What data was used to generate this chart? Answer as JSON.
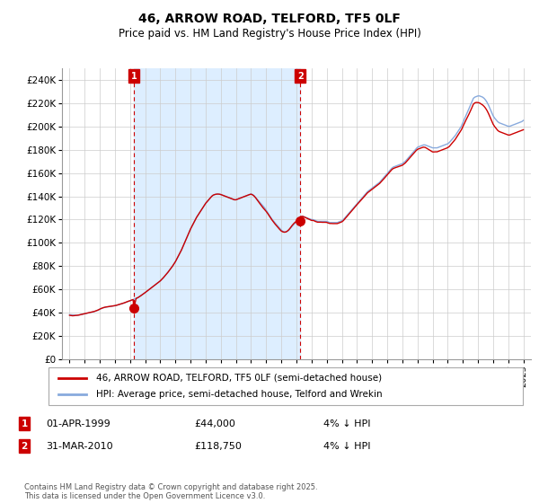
{
  "title": "46, ARROW ROAD, TELFORD, TF5 0LF",
  "subtitle": "Price paid vs. HM Land Registry's House Price Index (HPI)",
  "ytick_values": [
    0,
    20000,
    40000,
    60000,
    80000,
    100000,
    120000,
    140000,
    160000,
    180000,
    200000,
    220000,
    240000
  ],
  "ylim": [
    0,
    250000
  ],
  "xlim_start": 1994.5,
  "xlim_end": 2025.5,
  "xtick_years": [
    1995,
    1996,
    1997,
    1998,
    1999,
    2000,
    2001,
    2002,
    2003,
    2004,
    2005,
    2006,
    2007,
    2008,
    2009,
    2010,
    2011,
    2012,
    2013,
    2014,
    2015,
    2016,
    2017,
    2018,
    2019,
    2020,
    2021,
    2022,
    2023,
    2024,
    2025
  ],
  "line1_color": "#cc0000",
  "line2_color": "#88aadd",
  "vline_color": "#cc0000",
  "shade_color": "#ddeeff",
  "annotation_box_color": "#cc0000",
  "legend_line1": "46, ARROW ROAD, TELFORD, TF5 0LF (semi-detached house)",
  "legend_line2": "HPI: Average price, semi-detached house, Telford and Wrekin",
  "note1_label": "1",
  "note1_date": "01-APR-1999",
  "note1_price": "£44,000",
  "note1_text": "4% ↓ HPI",
  "note2_label": "2",
  "note2_date": "31-MAR-2010",
  "note2_price": "£118,750",
  "note2_text": "4% ↓ HPI",
  "footer": "Contains HM Land Registry data © Crown copyright and database right 2025.\nThis data is licensed under the Open Government Licence v3.0.",
  "purchase1_year": 1999.25,
  "purchase1_price": 44000,
  "purchase2_year": 2010.25,
  "purchase2_price": 118750,
  "hpi_data_x": [
    1995.0,
    1995.1,
    1995.2,
    1995.3,
    1995.4,
    1995.5,
    1995.6,
    1995.7,
    1995.8,
    1995.9,
    1996.0,
    1996.1,
    1996.2,
    1996.3,
    1996.4,
    1996.5,
    1996.6,
    1996.7,
    1996.8,
    1996.9,
    1997.0,
    1997.1,
    1997.2,
    1997.3,
    1997.4,
    1997.5,
    1997.6,
    1997.7,
    1997.8,
    1997.9,
    1998.0,
    1998.1,
    1998.2,
    1998.3,
    1998.4,
    1998.5,
    1998.6,
    1998.7,
    1998.8,
    1998.9,
    1999.0,
    1999.1,
    1999.2,
    1999.3,
    1999.4,
    1999.5,
    1999.6,
    1999.7,
    1999.8,
    1999.9,
    2000.0,
    2000.1,
    2000.2,
    2000.3,
    2000.4,
    2000.5,
    2000.6,
    2000.7,
    2000.8,
    2000.9,
    2001.0,
    2001.1,
    2001.2,
    2001.3,
    2001.4,
    2001.5,
    2001.6,
    2001.7,
    2001.8,
    2001.9,
    2002.0,
    2002.1,
    2002.2,
    2002.3,
    2002.4,
    2002.5,
    2002.6,
    2002.7,
    2002.8,
    2002.9,
    2003.0,
    2003.1,
    2003.2,
    2003.3,
    2003.4,
    2003.5,
    2003.6,
    2003.7,
    2003.8,
    2003.9,
    2004.0,
    2004.1,
    2004.2,
    2004.3,
    2004.4,
    2004.5,
    2004.6,
    2004.7,
    2004.8,
    2004.9,
    2005.0,
    2005.1,
    2005.2,
    2005.3,
    2005.4,
    2005.5,
    2005.6,
    2005.7,
    2005.8,
    2005.9,
    2006.0,
    2006.1,
    2006.2,
    2006.3,
    2006.4,
    2006.5,
    2006.6,
    2006.7,
    2006.8,
    2006.9,
    2007.0,
    2007.1,
    2007.2,
    2007.3,
    2007.4,
    2007.5,
    2007.6,
    2007.7,
    2007.8,
    2007.9,
    2008.0,
    2008.1,
    2008.2,
    2008.3,
    2008.4,
    2008.5,
    2008.6,
    2008.7,
    2008.8,
    2008.9,
    2009.0,
    2009.1,
    2009.2,
    2009.3,
    2009.4,
    2009.5,
    2009.6,
    2009.7,
    2009.8,
    2009.9,
    2010.0,
    2010.1,
    2010.2,
    2010.3,
    2010.4,
    2010.5,
    2010.6,
    2010.7,
    2010.8,
    2010.9,
    2011.0,
    2011.1,
    2011.2,
    2011.3,
    2011.4,
    2011.5,
    2011.6,
    2011.7,
    2011.8,
    2011.9,
    2012.0,
    2012.1,
    2012.2,
    2012.3,
    2012.4,
    2012.5,
    2012.6,
    2012.7,
    2012.8,
    2012.9,
    2013.0,
    2013.1,
    2013.2,
    2013.3,
    2013.4,
    2013.5,
    2013.6,
    2013.7,
    2013.8,
    2013.9,
    2014.0,
    2014.1,
    2014.2,
    2014.3,
    2014.4,
    2014.5,
    2014.6,
    2014.7,
    2014.8,
    2014.9,
    2015.0,
    2015.1,
    2015.2,
    2015.3,
    2015.4,
    2015.5,
    2015.6,
    2015.7,
    2015.8,
    2015.9,
    2016.0,
    2016.1,
    2016.2,
    2016.3,
    2016.4,
    2016.5,
    2016.6,
    2016.7,
    2016.8,
    2016.9,
    2017.0,
    2017.1,
    2017.2,
    2017.3,
    2017.4,
    2017.5,
    2017.6,
    2017.7,
    2017.8,
    2017.9,
    2018.0,
    2018.1,
    2018.2,
    2018.3,
    2018.4,
    2018.5,
    2018.6,
    2018.7,
    2018.8,
    2018.9,
    2019.0,
    2019.1,
    2019.2,
    2019.3,
    2019.4,
    2019.5,
    2019.6,
    2019.7,
    2019.8,
    2019.9,
    2020.0,
    2020.1,
    2020.2,
    2020.3,
    2020.4,
    2020.5,
    2020.6,
    2020.7,
    2020.8,
    2020.9,
    2021.0,
    2021.1,
    2021.2,
    2021.3,
    2021.4,
    2021.5,
    2021.6,
    2021.7,
    2021.8,
    2021.9,
    2022.0,
    2022.1,
    2022.2,
    2022.3,
    2022.4,
    2022.5,
    2022.6,
    2022.7,
    2022.8,
    2022.9,
    2023.0,
    2023.1,
    2023.2,
    2023.3,
    2023.4,
    2023.5,
    2023.6,
    2023.7,
    2023.8,
    2023.9,
    2024.0,
    2024.1,
    2024.2,
    2024.3,
    2024.4,
    2024.5,
    2024.6,
    2024.7,
    2024.8,
    2024.9,
    2025.0
  ],
  "hpi_data_y": [
    38500,
    38400,
    38300,
    38200,
    38100,
    38000,
    38200,
    38400,
    38700,
    39000,
    39300,
    39600,
    39900,
    40200,
    40500,
    40800,
    41100,
    41500,
    42000,
    42500,
    43200,
    43800,
    44300,
    44700,
    45000,
    45200,
    45400,
    45600,
    45800,
    46000,
    46200,
    46500,
    46900,
    47300,
    47700,
    48100,
    48500,
    49000,
    49500,
    50000,
    50500,
    51000,
    51500,
    52000,
    52500,
    53000,
    53800,
    54700,
    55600,
    56500,
    57500,
    58500,
    59500,
    60500,
    61500,
    62500,
    63500,
    64500,
    65500,
    66500,
    67500,
    68800,
    70200,
    71700,
    73200,
    74800,
    76500,
    78200,
    80000,
    82000,
    84000,
    86500,
    89000,
    91500,
    94000,
    97000,
    100000,
    103000,
    106000,
    109000,
    112000,
    114500,
    117000,
    119500,
    122000,
    124000,
    126000,
    128000,
    130000,
    132000,
    134000,
    135500,
    137000,
    138500,
    140000,
    141000,
    141500,
    141800,
    141900,
    141800,
    141500,
    141000,
    140500,
    140000,
    139500,
    139000,
    138500,
    138000,
    137500,
    137000,
    137000,
    137500,
    138000,
    138500,
    139000,
    139500,
    140000,
    140500,
    141000,
    141500,
    142000,
    141500,
    140500,
    139000,
    137500,
    136000,
    134500,
    133000,
    131500,
    130000,
    128000,
    126000,
    124000,
    122000,
    120000,
    118500,
    117000,
    115500,
    114000,
    112500,
    111000,
    110000,
    109500,
    109500,
    110000,
    111000,
    112500,
    114000,
    115500,
    117000,
    118500,
    120000,
    121500,
    122500,
    123000,
    122500,
    122000,
    121500,
    121000,
    120500,
    120000,
    120000,
    119500,
    119000,
    118500,
    118500,
    118500,
    118500,
    118500,
    118500,
    118500,
    118000,
    117500,
    117500,
    117500,
    117500,
    117500,
    117500,
    118000,
    118500,
    119000,
    120000,
    121500,
    123000,
    124500,
    126000,
    127500,
    129000,
    130500,
    132000,
    133500,
    135000,
    136500,
    138000,
    139500,
    141000,
    142500,
    144000,
    145000,
    146000,
    147000,
    148000,
    149000,
    150000,
    151000,
    152000,
    153500,
    155000,
    156500,
    158000,
    159500,
    161000,
    162500,
    164000,
    165000,
    165500,
    166000,
    166500,
    167000,
    167500,
    168000,
    169000,
    170000,
    171500,
    173000,
    174500,
    176000,
    177500,
    179000,
    180500,
    182000,
    182500,
    183000,
    183500,
    184000,
    184000,
    183500,
    183000,
    182500,
    182000,
    181500,
    181500,
    181500,
    181500,
    182000,
    182500,
    183000,
    183500,
    184000,
    184500,
    185000,
    186000,
    187500,
    189000,
    190500,
    192000,
    194000,
    196000,
    198000,
    200000,
    203000,
    206000,
    209000,
    212000,
    215000,
    218000,
    221000,
    224000,
    225000,
    225500,
    226000,
    226000,
    225500,
    225000,
    224000,
    222500,
    220500,
    218000,
    215000,
    212000,
    209000,
    207000,
    205500,
    204000,
    203000,
    202500,
    202000,
    201500,
    201000,
    200500,
    200000,
    200000,
    200500,
    201000,
    201500,
    202000,
    202500,
    203000,
    203500,
    204000,
    205000
  ],
  "price_data_x": [
    1995.0,
    1995.1,
    1995.2,
    1995.3,
    1995.4,
    1995.5,
    1995.6,
    1995.7,
    1995.8,
    1995.9,
    1996.0,
    1996.1,
    1996.2,
    1996.3,
    1996.4,
    1996.5,
    1996.6,
    1996.7,
    1996.8,
    1996.9,
    1997.0,
    1997.1,
    1997.2,
    1997.3,
    1997.4,
    1997.5,
    1997.6,
    1997.7,
    1997.8,
    1997.9,
    1998.0,
    1998.1,
    1998.2,
    1998.3,
    1998.4,
    1998.5,
    1998.6,
    1998.7,
    1998.8,
    1998.9,
    1999.0,
    1999.1,
    1999.2,
    1999.25,
    1999.4,
    1999.5,
    1999.6,
    1999.7,
    1999.8,
    1999.9,
    2000.0,
    2000.1,
    2000.2,
    2000.3,
    2000.4,
    2000.5,
    2000.6,
    2000.7,
    2000.8,
    2000.9,
    2001.0,
    2001.1,
    2001.2,
    2001.3,
    2001.4,
    2001.5,
    2001.6,
    2001.7,
    2001.8,
    2001.9,
    2002.0,
    2002.1,
    2002.2,
    2002.3,
    2002.4,
    2002.5,
    2002.6,
    2002.7,
    2002.8,
    2002.9,
    2003.0,
    2003.1,
    2003.2,
    2003.3,
    2003.4,
    2003.5,
    2003.6,
    2003.7,
    2003.8,
    2003.9,
    2004.0,
    2004.1,
    2004.2,
    2004.3,
    2004.4,
    2004.5,
    2004.6,
    2004.7,
    2004.8,
    2004.9,
    2005.0,
    2005.1,
    2005.2,
    2005.3,
    2005.4,
    2005.5,
    2005.6,
    2005.7,
    2005.8,
    2005.9,
    2006.0,
    2006.1,
    2006.2,
    2006.3,
    2006.4,
    2006.5,
    2006.6,
    2006.7,
    2006.8,
    2006.9,
    2007.0,
    2007.1,
    2007.2,
    2007.3,
    2007.4,
    2007.5,
    2007.6,
    2007.7,
    2007.8,
    2007.9,
    2008.0,
    2008.1,
    2008.2,
    2008.3,
    2008.4,
    2008.5,
    2008.6,
    2008.7,
    2008.8,
    2008.9,
    2009.0,
    2009.1,
    2009.2,
    2009.3,
    2009.4,
    2009.5,
    2009.6,
    2009.7,
    2009.8,
    2009.9,
    2010.0,
    2010.1,
    2010.2,
    2010.25,
    2010.4,
    2010.5,
    2010.6,
    2010.7,
    2010.8,
    2010.9,
    2011.0,
    2011.1,
    2011.2,
    2011.3,
    2011.4,
    2011.5,
    2011.6,
    2011.7,
    2011.8,
    2011.9,
    2012.0,
    2012.1,
    2012.2,
    2012.3,
    2012.4,
    2012.5,
    2012.6,
    2012.7,
    2012.8,
    2012.9,
    2013.0,
    2013.1,
    2013.2,
    2013.3,
    2013.4,
    2013.5,
    2013.6,
    2013.7,
    2013.8,
    2013.9,
    2014.0,
    2014.1,
    2014.2,
    2014.3,
    2014.4,
    2014.5,
    2014.6,
    2014.7,
    2014.8,
    2014.9,
    2015.0,
    2015.1,
    2015.2,
    2015.3,
    2015.4,
    2015.5,
    2015.6,
    2015.7,
    2015.8,
    2015.9,
    2016.0,
    2016.1,
    2016.2,
    2016.3,
    2016.4,
    2016.5,
    2016.6,
    2016.7,
    2016.8,
    2016.9,
    2017.0,
    2017.1,
    2017.2,
    2017.3,
    2017.4,
    2017.5,
    2017.6,
    2017.7,
    2017.8,
    2017.9,
    2018.0,
    2018.1,
    2018.2,
    2018.3,
    2018.4,
    2018.5,
    2018.6,
    2018.7,
    2018.8,
    2018.9,
    2019.0,
    2019.1,
    2019.2,
    2019.3,
    2019.4,
    2019.5,
    2019.6,
    2019.7,
    2019.8,
    2019.9,
    2020.0,
    2020.1,
    2020.2,
    2020.3,
    2020.4,
    2020.5,
    2020.6,
    2020.7,
    2020.8,
    2020.9,
    2021.0,
    2021.1,
    2021.2,
    2021.3,
    2021.4,
    2021.5,
    2021.6,
    2021.7,
    2021.8,
    2021.9,
    2022.0,
    2022.1,
    2022.2,
    2022.3,
    2022.4,
    2022.5,
    2022.6,
    2022.7,
    2022.8,
    2022.9,
    2023.0,
    2023.1,
    2023.2,
    2023.3,
    2023.4,
    2023.5,
    2023.6,
    2023.7,
    2023.8,
    2023.9,
    2024.0,
    2024.1,
    2024.2,
    2024.3,
    2024.4,
    2024.5,
    2024.6,
    2024.7,
    2024.8,
    2024.9,
    2025.0
  ],
  "price_data_y": [
    38000,
    37800,
    37600,
    37700,
    37900,
    38000,
    38200,
    38500,
    38800,
    39100,
    39400,
    39700,
    40000,
    40300,
    40600,
    40900,
    41200,
    41600,
    42100,
    42600,
    43300,
    43900,
    44400,
    44800,
    45100,
    45300,
    45500,
    45700,
    45900,
    46100,
    46300,
    46600,
    47000,
    47400,
    47800,
    48200,
    48600,
    49100,
    49600,
    50100,
    50500,
    51000,
    51500,
    44000,
    52500,
    53000,
    53800,
    54700,
    55600,
    56500,
    57500,
    58500,
    59500,
    60500,
    61500,
    62500,
    63500,
    64500,
    65500,
    66500,
    67500,
    68800,
    70200,
    71700,
    73200,
    74800,
    76500,
    78200,
    80000,
    82000,
    84000,
    86500,
    89000,
    91500,
    94000,
    97000,
    100000,
    103000,
    106000,
    109000,
    112000,
    114500,
    117000,
    119500,
    122000,
    124000,
    126000,
    128000,
    130000,
    132000,
    134000,
    135500,
    137000,
    138500,
    140000,
    141000,
    141500,
    141800,
    141900,
    141800,
    141500,
    141000,
    140500,
    140000,
    139500,
    139000,
    138500,
    138000,
    137500,
    137000,
    137000,
    137500,
    138000,
    138500,
    139000,
    139500,
    140000,
    140500,
    141000,
    141500,
    141800,
    141200,
    140200,
    138700,
    136900,
    135200,
    133400,
    131700,
    130000,
    128500,
    127000,
    125200,
    123200,
    121300,
    119400,
    117700,
    116000,
    114500,
    113000,
    111500,
    110200,
    109500,
    109200,
    109400,
    110200,
    111400,
    113000,
    114800,
    116300,
    117600,
    118700,
    118750,
    121500,
    122500,
    122800,
    122300,
    121700,
    121100,
    120500,
    119900,
    119300,
    119300,
    118800,
    118200,
    117800,
    117800,
    117800,
    117700,
    117700,
    117700,
    117600,
    117100,
    116700,
    116700,
    116600,
    116600,
    116600,
    116600,
    117100,
    117600,
    118100,
    119100,
    120600,
    122100,
    123600,
    125200,
    126700,
    128200,
    129700,
    131300,
    132800,
    134200,
    135700,
    137100,
    138600,
    140100,
    141500,
    143000,
    144000,
    145000,
    146000,
    147000,
    148000,
    149000,
    150000,
    151000,
    152400,
    153800,
    155300,
    156800,
    158300,
    159800,
    161300,
    162800,
    163800,
    164300,
    164800,
    165200,
    165700,
    166100,
    166600,
    167600,
    168600,
    170100,
    171600,
    173100,
    174600,
    176000,
    177500,
    179000,
    180200,
    180700,
    181200,
    181700,
    182100,
    181900,
    181200,
    180400,
    179500,
    178700,
    178000,
    178000,
    178100,
    178100,
    178600,
    179100,
    179600,
    180100,
    180600,
    181100,
    181700,
    182600,
    184100,
    185600,
    187200,
    188800,
    190800,
    192800,
    194900,
    196900,
    199700,
    202400,
    205100,
    207700,
    210300,
    213100,
    216000,
    219000,
    220100,
    220400,
    220300,
    220000,
    219200,
    218300,
    217100,
    215500,
    213400,
    210800,
    207800,
    204800,
    201800,
    199800,
    198100,
    196500,
    195500,
    195000,
    194500,
    194000,
    193500,
    193000,
    192500,
    192500,
    193000,
    193500,
    194000,
    194500,
    195000,
    195500,
    196000,
    196500,
    197000
  ]
}
